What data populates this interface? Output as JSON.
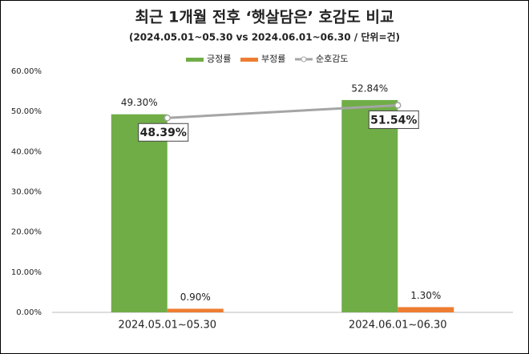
{
  "chart_data": {
    "type": "bar-line",
    "title": "최근 1개월 전후 ‘햇살담은’ 호감도 비교",
    "subtitle": "(2024.05.01~05.30 vs 2024.06.01~06.30 / 단위=건)",
    "categories": [
      "2024.05.01~05.30",
      "2024.06.01~06.30"
    ],
    "series": [
      {
        "name": "긍정률",
        "type": "bar",
        "color": "#70ad47",
        "values": [
          49.3,
          52.84
        ],
        "value_labels": [
          "49.30%",
          "52.84%"
        ]
      },
      {
        "name": "부정률",
        "type": "bar",
        "color": "#ed7d31",
        "values": [
          0.9,
          1.3
        ],
        "value_labels": [
          "0.90%",
          "1.30%"
        ]
      },
      {
        "name": "순호감도",
        "type": "line",
        "color": "#a5a5a5",
        "values": [
          48.39,
          51.54
        ],
        "value_labels": [
          "48.39%",
          "51.54%"
        ]
      }
    ],
    "ylim": [
      0,
      60
    ],
    "yticks": [
      {
        "value": 0,
        "label": "0.00%"
      },
      {
        "value": 10,
        "label": "10.00%"
      },
      {
        "value": 20,
        "label": "20.00%"
      },
      {
        "value": 30,
        "label": "30.00%"
      },
      {
        "value": 40,
        "label": "40.00%"
      },
      {
        "value": 50,
        "label": "50.00%"
      },
      {
        "value": 60,
        "label": "60.00%"
      }
    ],
    "grid": false,
    "legend": "top"
  }
}
